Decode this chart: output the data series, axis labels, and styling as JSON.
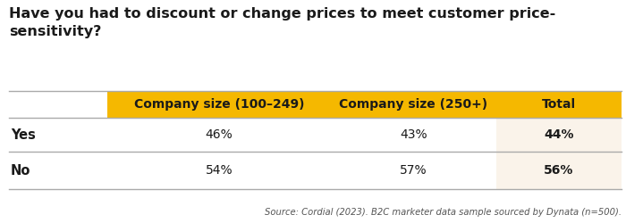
{
  "title": "Have you had to discount or change prices to meet customer price-\nsensitivity?",
  "title_fontsize": 11.5,
  "title_fontweight": "bold",
  "columns": [
    "Company size (100–249)",
    "Company size (250+)",
    "Total"
  ],
  "rows": [
    "Yes",
    "No"
  ],
  "values": [
    [
      "46%",
      "43%",
      "44%"
    ],
    [
      "54%",
      "57%",
      "56%"
    ]
  ],
  "header_bg": "#F5B800",
  "header_text_color": "#1a1a1a",
  "total_col_bg": "#FAF3EA",
  "row_label_color": "#1a1a1a",
  "source_text": "Source: Cordial (2023). B2C marketer data sample sourced by Dynata (n=500).",
  "bg_color": "#ffffff",
  "divider_color": "#aaaaaa",
  "cell_fontsize": 10,
  "header_fontsize": 10,
  "row_label_fontsize": 10.5
}
